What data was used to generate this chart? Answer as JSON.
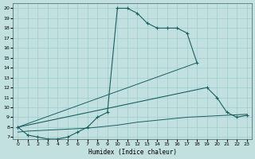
{
  "xlabel": "Humidex (Indice chaleur)",
  "bg_color": "#c2e0e0",
  "grid_color": "#9ecece",
  "line_color": "#1a6060",
  "xlim": [
    -0.5,
    23.5
  ],
  "ylim": [
    6.8,
    20.5
  ],
  "xticks": [
    0,
    1,
    2,
    3,
    4,
    5,
    6,
    7,
    8,
    9,
    10,
    11,
    12,
    13,
    14,
    15,
    16,
    17,
    18,
    19,
    20,
    21,
    22,
    23
  ],
  "yticks": [
    7,
    8,
    9,
    10,
    11,
    12,
    13,
    14,
    15,
    16,
    17,
    18,
    19,
    20
  ],
  "curve1_x": [
    0,
    1,
    2,
    3,
    4,
    5,
    6,
    7,
    8,
    9,
    10,
    11,
    12,
    13,
    14,
    15,
    16,
    17,
    18
  ],
  "curve1_y": [
    8,
    7.2,
    7,
    6.8,
    6.8,
    7,
    7.5,
    8.0,
    9.0,
    9.5,
    20,
    20,
    19.5,
    18.5,
    18,
    18,
    18,
    17.5,
    14.5
  ],
  "curve2_x": [
    0,
    19,
    20,
    21,
    22,
    23
  ],
  "curve2_y": [
    8,
    12,
    11,
    9.5,
    9.0,
    9.2
  ],
  "curve3_x": [
    0,
    1,
    2,
    3,
    4,
    5,
    6,
    7,
    8,
    9,
    10,
    11,
    12,
    13,
    14,
    15,
    16,
    17,
    18,
    19,
    20,
    21,
    22,
    23
  ],
  "curve3_y": [
    7.5,
    7.6,
    7.65,
    7.7,
    7.75,
    7.8,
    7.85,
    7.9,
    8.0,
    8.1,
    8.2,
    8.35,
    8.5,
    8.6,
    8.7,
    8.8,
    8.9,
    9.0,
    9.05,
    9.1,
    9.15,
    9.2,
    9.25,
    9.3
  ],
  "curve4_x": [
    0,
    18
  ],
  "curve4_y": [
    8,
    14.5
  ]
}
